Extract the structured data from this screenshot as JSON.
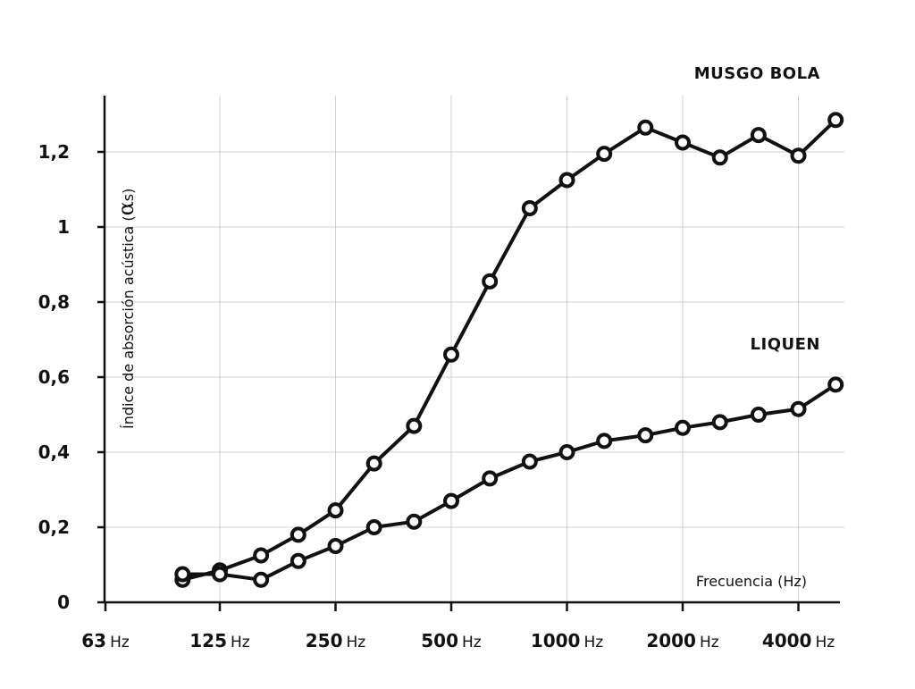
{
  "chart_data": {
    "type": "line",
    "ylabel_prefix": "Índice de absorción acústica (",
    "ylabel_symbol": "α",
    "ylabel_sub": "s",
    "ylabel_suffix": ")",
    "xlabel": "Frecuencia (Hz)",
    "ylim": [
      0,
      1.3
    ],
    "x_scale": "log",
    "grid": true,
    "y_ticks": [
      {
        "value": 0,
        "label": "0"
      },
      {
        "value": 0.2,
        "label": "0,2"
      },
      {
        "value": 0.4,
        "label": "0,4"
      },
      {
        "value": 0.6,
        "label": "0,6"
      },
      {
        "value": 0.8,
        "label": "0,8"
      },
      {
        "value": 1.0,
        "label": "1"
      },
      {
        "value": 1.2,
        "label": "1,2"
      }
    ],
    "x_ticks": [
      {
        "value": 63,
        "num": "63",
        "unit": "Hz"
      },
      {
        "value": 125,
        "num": "125",
        "unit": "Hz"
      },
      {
        "value": 250,
        "num": "250",
        "unit": "Hz"
      },
      {
        "value": 500,
        "num": "500",
        "unit": "Hz"
      },
      {
        "value": 1000,
        "num": "1000",
        "unit": "Hz"
      },
      {
        "value": 2000,
        "num": "2000",
        "unit": "Hz"
      },
      {
        "value": 4000,
        "num": "4000",
        "unit": "Hz"
      }
    ],
    "series": [
      {
        "name": "MUSGO BOLA",
        "x": [
          100,
          125,
          160,
          200,
          250,
          315,
          400,
          500,
          630,
          800,
          1000,
          1250,
          1600,
          2000,
          2500,
          3150,
          4000,
          5000
        ],
        "values": [
          0.06,
          0.085,
          0.125,
          0.18,
          0.245,
          0.37,
          0.47,
          0.66,
          0.855,
          1.05,
          1.125,
          1.195,
          1.265,
          1.225,
          1.185,
          1.245,
          1.19,
          1.285
        ]
      },
      {
        "name": "LIQUEN",
        "x": [
          100,
          125,
          160,
          200,
          250,
          315,
          400,
          500,
          630,
          800,
          1000,
          1250,
          1600,
          2000,
          2500,
          3150,
          4000,
          5000
        ],
        "values": [
          0.075,
          0.075,
          0.06,
          0.11,
          0.15,
          0.2,
          0.215,
          0.27,
          0.33,
          0.375,
          0.4,
          0.43,
          0.445,
          0.465,
          0.48,
          0.5,
          0.515,
          0.58
        ]
      }
    ]
  }
}
